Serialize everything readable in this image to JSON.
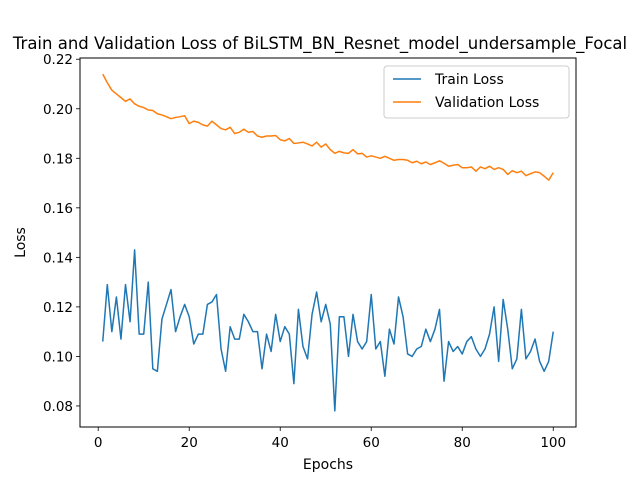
{
  "chart_data": {
    "type": "line",
    "title": "Train and Validation Loss of BiLSTM_BN_Resnet_model_undersample_Focal",
    "xlabel": "Epochs",
    "ylabel": "Loss",
    "xlim": [
      -4,
      105
    ],
    "ylim": [
      0.0715,
      0.2205
    ],
    "xticks": [
      0,
      20,
      40,
      60,
      80,
      100
    ],
    "yticks": [
      0.08,
      0.1,
      0.12,
      0.14,
      0.16,
      0.18,
      0.2,
      0.22
    ],
    "ytick_labels": [
      "0.08",
      "0.10",
      "0.12",
      "0.14",
      "0.16",
      "0.18",
      "0.20",
      "0.22"
    ],
    "grid": false,
    "legend": "upper right",
    "x": [
      1,
      2,
      3,
      4,
      5,
      6,
      7,
      8,
      9,
      10,
      11,
      12,
      13,
      14,
      15,
      16,
      17,
      18,
      19,
      20,
      21,
      22,
      23,
      24,
      25,
      26,
      27,
      28,
      29,
      30,
      31,
      32,
      33,
      34,
      35,
      36,
      37,
      38,
      39,
      40,
      41,
      42,
      43,
      44,
      45,
      46,
      47,
      48,
      49,
      50,
      51,
      52,
      53,
      54,
      55,
      56,
      57,
      58,
      59,
      60,
      61,
      62,
      63,
      64,
      65,
      66,
      67,
      68,
      69,
      70,
      71,
      72,
      73,
      74,
      75,
      76,
      77,
      78,
      79,
      80,
      81,
      82,
      83,
      84,
      85,
      86,
      87,
      88,
      89,
      90,
      91,
      92,
      93,
      94,
      95,
      96,
      97,
      98,
      99,
      100
    ],
    "series": [
      {
        "name": "Train Loss",
        "color": "#1f77b4",
        "values": [
          0.106,
          0.129,
          0.11,
          0.124,
          0.107,
          0.129,
          0.114,
          0.143,
          0.109,
          0.109,
          0.13,
          0.095,
          0.094,
          0.115,
          0.121,
          0.127,
          0.11,
          0.116,
          0.121,
          0.116,
          0.105,
          0.109,
          0.109,
          0.121,
          0.122,
          0.125,
          0.103,
          0.094,
          0.112,
          0.107,
          0.107,
          0.117,
          0.114,
          0.11,
          0.11,
          0.095,
          0.109,
          0.102,
          0.117,
          0.106,
          0.112,
          0.109,
          0.089,
          0.119,
          0.104,
          0.099,
          0.117,
          0.126,
          0.114,
          0.121,
          0.113,
          0.078,
          0.116,
          0.116,
          0.1,
          0.117,
          0.106,
          0.103,
          0.106,
          0.125,
          0.103,
          0.106,
          0.092,
          0.111,
          0.105,
          0.124,
          0.116,
          0.101,
          0.1,
          0.103,
          0.104,
          0.111,
          0.106,
          0.111,
          0.119,
          0.09,
          0.106,
          0.102,
          0.104,
          0.101,
          0.106,
          0.108,
          0.103,
          0.1,
          0.103,
          0.109,
          0.12,
          0.098,
          0.123,
          0.111,
          0.095,
          0.099,
          0.119,
          0.099,
          0.102,
          0.107,
          0.098,
          0.094,
          0.098,
          0.11
        ]
      },
      {
        "name": "Validation Loss",
        "color": "#ff7f0e",
        "values": [
          0.214,
          0.2105,
          0.2075,
          0.206,
          0.2045,
          0.203,
          0.204,
          0.202,
          0.201,
          0.2005,
          0.1995,
          0.1993,
          0.198,
          0.1975,
          0.1968,
          0.196,
          0.1965,
          0.1968,
          0.1972,
          0.194,
          0.195,
          0.1945,
          0.1935,
          0.193,
          0.195,
          0.1935,
          0.192,
          0.1915,
          0.1925,
          0.19,
          0.1905,
          0.1918,
          0.1905,
          0.1908,
          0.189,
          0.1885,
          0.189,
          0.189,
          0.1892,
          0.1875,
          0.187,
          0.188,
          0.186,
          0.1862,
          0.1865,
          0.1858,
          0.185,
          0.1865,
          0.1845,
          0.1858,
          0.1835,
          0.182,
          0.1828,
          0.1822,
          0.182,
          0.1835,
          0.1818,
          0.182,
          0.1805,
          0.181,
          0.1805,
          0.18,
          0.1808,
          0.18,
          0.1792,
          0.1795,
          0.1795,
          0.1792,
          0.1782,
          0.1788,
          0.1778,
          0.1785,
          0.1775,
          0.1782,
          0.179,
          0.178,
          0.1768,
          0.1772,
          0.1775,
          0.1762,
          0.1762,
          0.1765,
          0.1748,
          0.1765,
          0.1758,
          0.1768,
          0.1755,
          0.1762,
          0.1755,
          0.1735,
          0.175,
          0.1742,
          0.1748,
          0.173,
          0.1738,
          0.1745,
          0.1742,
          0.1728,
          0.1712,
          0.1742
        ]
      }
    ]
  }
}
